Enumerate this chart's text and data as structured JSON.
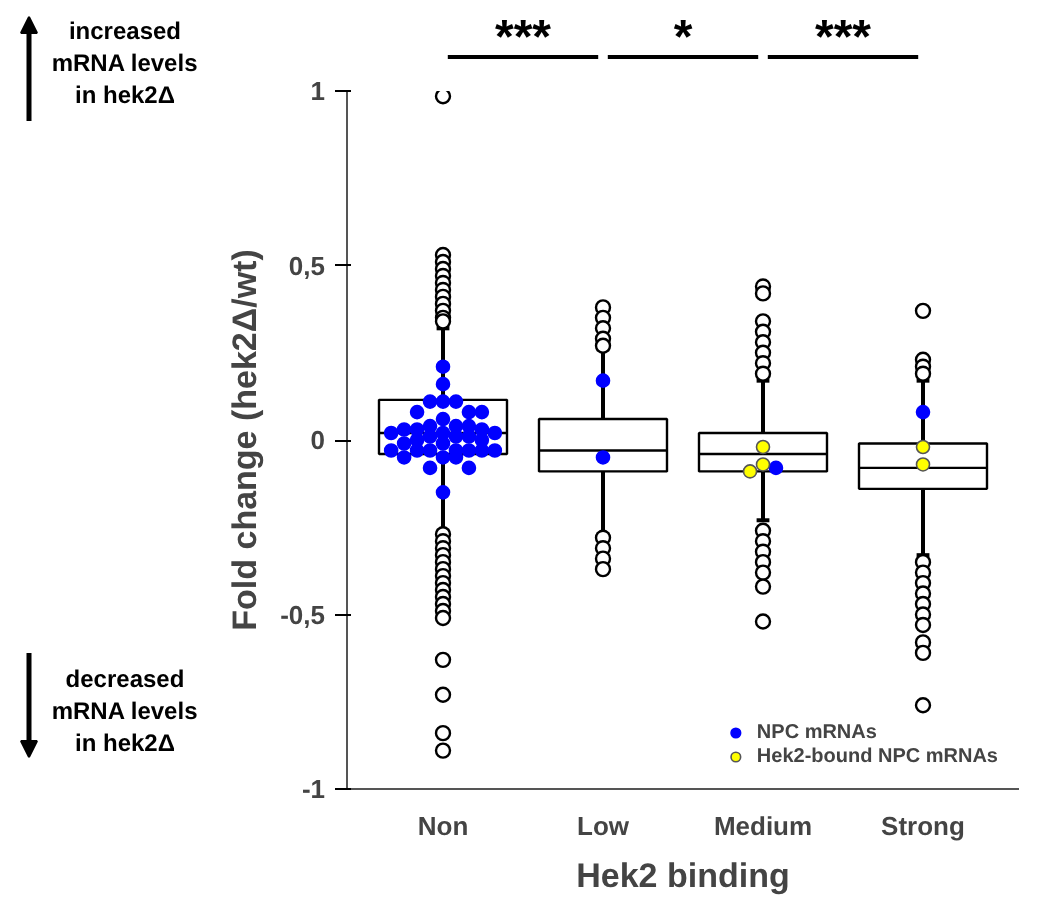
{
  "chart_data": {
    "type": "box",
    "title": null,
    "xlabel": "Hek2 binding",
    "ylabel": "Fold change (hek2Δ/wt)",
    "categories": [
      "Non",
      "Low",
      "Medium",
      "Strong"
    ],
    "boxes": [
      {
        "low": -0.26,
        "q1": -0.04,
        "median": 0.02,
        "q3": 0.115,
        "high": 0.32,
        "outliers": [
          0.985,
          0.53,
          0.51,
          0.49,
          0.47,
          0.45,
          0.43,
          0.41,
          0.39,
          0.37,
          0.35,
          0.34,
          -0.27,
          -0.29,
          -0.31,
          -0.33,
          -0.35,
          -0.37,
          -0.39,
          -0.41,
          -0.43,
          -0.45,
          -0.47,
          -0.49,
          -0.51,
          -0.63,
          -0.73,
          -0.84,
          -0.89
        ]
      },
      {
        "low": -0.27,
        "q1": -0.09,
        "median": -0.03,
        "q3": 0.06,
        "high": 0.26,
        "outliers": [
          0.38,
          0.35,
          0.32,
          0.29,
          0.27,
          -0.28,
          -0.31,
          -0.34,
          -0.37
        ]
      },
      {
        "low": -0.23,
        "q1": -0.09,
        "median": -0.04,
        "q3": 0.02,
        "high": 0.17,
        "outliers": [
          0.44,
          0.42,
          0.34,
          0.31,
          0.28,
          0.25,
          0.22,
          0.19,
          -0.26,
          -0.29,
          -0.32,
          -0.35,
          -0.38,
          -0.42,
          -0.52
        ]
      },
      {
        "low": -0.33,
        "q1": -0.14,
        "median": -0.08,
        "q3": -0.01,
        "high": 0.17,
        "outliers": [
          0.37,
          0.23,
          0.21,
          0.19,
          -0.35,
          -0.38,
          -0.41,
          -0.44,
          -0.47,
          -0.5,
          -0.53,
          -0.58,
          -0.61,
          -0.76
        ]
      }
    ],
    "series": [
      {
        "name": "NPC mRNAs",
        "type": "scatter",
        "color": "#0000ff",
        "x": [
          "Non",
          "Non",
          "Non",
          "Non",
          "Non",
          "Non",
          "Non",
          "Non",
          "Non",
          "Non",
          "Non",
          "Non",
          "Non",
          "Non",
          "Non",
          "Non",
          "Non",
          "Non",
          "Non",
          "Non",
          "Non",
          "Non",
          "Non",
          "Non",
          "Non",
          "Non",
          "Non",
          "Non",
          "Non",
          "Non",
          "Non",
          "Non",
          "Non",
          "Non",
          "Non",
          "Non",
          "Non",
          "Non",
          "Low",
          "Low",
          "Medium",
          "Strong"
        ],
        "values": [
          0.21,
          0.16,
          0.11,
          0.11,
          0.11,
          0.08,
          0.08,
          0.08,
          0.06,
          0.04,
          0.04,
          0.04,
          0.03,
          0.03,
          0.03,
          0.02,
          0.02,
          0.02,
          0.01,
          0.01,
          0.01,
          0.0,
          0.0,
          -0.01,
          -0.01,
          -0.03,
          -0.03,
          -0.03,
          -0.03,
          -0.03,
          -0.03,
          -0.03,
          -0.05,
          -0.05,
          -0.05,
          -0.08,
          -0.08,
          -0.15,
          0.17,
          -0.05,
          -0.08,
          0.08
        ]
      },
      {
        "name": "Hek2-bound NPC mRNAs",
        "type": "scatter",
        "color": "#ffff00",
        "x": [
          "Medium",
          "Medium",
          "Medium",
          "Strong",
          "Strong"
        ],
        "values": [
          -0.02,
          -0.07,
          -0.09,
          -0.02,
          -0.07
        ]
      }
    ],
    "ylim": [
      -1,
      1
    ],
    "yticks": [
      -1,
      {
        "value": -0.5,
        "label": "-0,5"
      },
      0,
      {
        "value": 0.5,
        "label": "0,5"
      },
      1
    ],
    "annotations": [
      "increased\nmRNA levels\nin hek2Δ",
      "decreased\nmRNA levels\nin hek2Δ",
      "***",
      "*",
      "***"
    ],
    "legend": "bottom right",
    "marker": "circle",
    "grid": false
  }
}
